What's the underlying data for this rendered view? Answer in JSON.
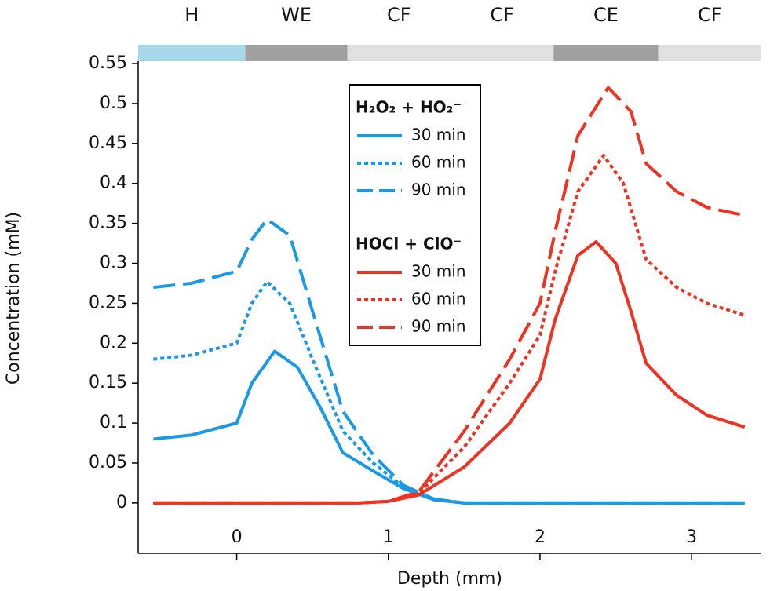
{
  "chart_data": {
    "type": "line",
    "xlabel": "Depth (mm)",
    "ylabel": "Concentration (mM)",
    "xlim": [
      -0.65,
      3.46
    ],
    "ylim": [
      -0.063,
      0.553
    ],
    "xticks": [
      0,
      1,
      2,
      3
    ],
    "yticks": [
      0,
      0.05,
      0.1,
      0.15,
      0.2,
      0.25,
      0.3,
      0.35,
      0.4,
      0.45,
      0.5,
      0.55
    ],
    "regions": [
      {
        "name": "H",
        "start": -0.65,
        "end": 0.057,
        "color": "#a8d8ea"
      },
      {
        "name": "WE",
        "start": 0.057,
        "end": 0.73,
        "color": "#a0a0a0"
      },
      {
        "name": "CF",
        "start": 0.73,
        "end": 1.41,
        "color": "#e0e0e0"
      },
      {
        "name": "CF",
        "start": 1.41,
        "end": 2.09,
        "color": "#e0e0e0"
      },
      {
        "name": "CE",
        "start": 2.09,
        "end": 2.78,
        "color": "#a0a0a0"
      },
      {
        "name": "CF",
        "start": 2.78,
        "end": 3.46,
        "color": "#e0e0e0"
      }
    ],
    "legend_groups": [
      {
        "title": "H₂O₂ + HO₂⁻",
        "series": [
          0,
          1,
          2
        ]
      },
      {
        "title": "HOCl + ClO⁻",
        "series": [
          3,
          4,
          5
        ]
      }
    ],
    "series": [
      {
        "name": "30 min",
        "color": "#1a9ae6",
        "dash": "solid",
        "x": [
          -0.55,
          -0.3,
          0,
          0.1,
          0.25,
          0.4,
          0.55,
          0.7,
          0.9,
          1.1,
          1.3,
          1.5,
          2,
          3.35
        ],
        "values": [
          0.08,
          0.085,
          0.1,
          0.15,
          0.19,
          0.17,
          0.12,
          0.063,
          0.04,
          0.018,
          0.004,
          0,
          0,
          0
        ]
      },
      {
        "name": "60 min",
        "color": "#1a9ae6",
        "dash": "dotted",
        "x": [
          -0.55,
          -0.3,
          0,
          0.1,
          0.2,
          0.35,
          0.5,
          0.7,
          0.9,
          1.1,
          1.3,
          1.5,
          3.35
        ],
        "values": [
          0.18,
          0.185,
          0.2,
          0.25,
          0.277,
          0.25,
          0.18,
          0.09,
          0.05,
          0.02,
          0.005,
          0,
          0
        ]
      },
      {
        "name": "90 min",
        "color": "#1a9ae6",
        "dash": "dashed",
        "x": [
          -0.55,
          -0.3,
          0,
          0.1,
          0.2,
          0.35,
          0.5,
          0.7,
          0.9,
          1.1,
          1.3,
          1.5,
          3.35
        ],
        "values": [
          0.27,
          0.275,
          0.29,
          0.33,
          0.355,
          0.335,
          0.24,
          0.115,
          0.06,
          0.022,
          0.005,
          0,
          0
        ]
      },
      {
        "name": "30 min",
        "color": "#ee3322",
        "dash": "solid",
        "x": [
          -0.55,
          0.8,
          1.0,
          1.2,
          1.5,
          1.8,
          2.0,
          2.1,
          2.25,
          2.37,
          2.5,
          2.6,
          2.7,
          2.9,
          3.1,
          3.35
        ],
        "values": [
          0,
          0,
          0.002,
          0.01,
          0.045,
          0.1,
          0.155,
          0.23,
          0.31,
          0.327,
          0.3,
          0.24,
          0.175,
          0.135,
          0.11,
          0.095
        ]
      },
      {
        "name": "60 min",
        "color": "#ee3322",
        "dash": "dotted",
        "x": [
          -0.55,
          0.8,
          1.0,
          1.2,
          1.5,
          1.8,
          2.0,
          2.1,
          2.25,
          2.42,
          2.55,
          2.7,
          2.9,
          3.1,
          3.35
        ],
        "values": [
          0,
          0,
          0.002,
          0.012,
          0.07,
          0.15,
          0.21,
          0.29,
          0.39,
          0.435,
          0.4,
          0.305,
          0.27,
          0.25,
          0.235
        ]
      },
      {
        "name": "90 min",
        "color": "#ee3322",
        "dash": "dashed",
        "x": [
          -0.55,
          0.8,
          1.0,
          1.2,
          1.5,
          1.8,
          2.0,
          2.1,
          2.25,
          2.45,
          2.6,
          2.7,
          2.9,
          3.1,
          3.35
        ],
        "values": [
          0,
          0,
          0.002,
          0.014,
          0.09,
          0.18,
          0.25,
          0.34,
          0.46,
          0.52,
          0.49,
          0.425,
          0.39,
          0.37,
          0.36
        ]
      }
    ]
  }
}
